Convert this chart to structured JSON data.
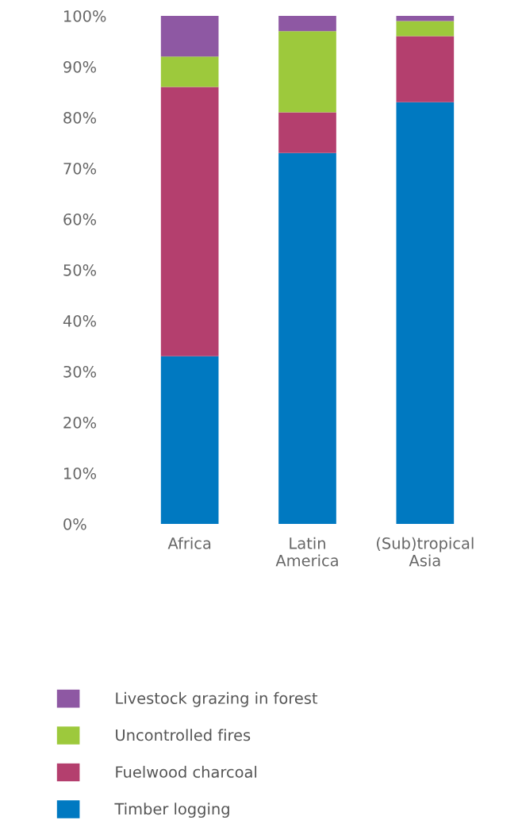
{
  "chart_data": {
    "type": "bar",
    "stacked": true,
    "categories": [
      "Africa",
      "Latin\nAmerica",
      "(Sub)tropical\nAsia"
    ],
    "series": [
      {
        "name": "Timber logging",
        "color": "#0079c1",
        "values": [
          33,
          73,
          83
        ]
      },
      {
        "name": "Fuelwood charcoal",
        "color": "#b43f6e",
        "values": [
          53,
          8,
          13
        ]
      },
      {
        "name": "Uncontrolled fires",
        "color": "#9dc93c",
        "values": [
          6,
          16,
          3
        ]
      },
      {
        "name": "Livestock grazing in forest",
        "color": "#8e58a3",
        "values": [
          8,
          3,
          1
        ]
      }
    ],
    "ylim": [
      0,
      100
    ],
    "yticks": [
      {
        "value": 0,
        "label": "0%"
      },
      {
        "value": 10,
        "label": "10%"
      },
      {
        "value": 20,
        "label": "20%"
      },
      {
        "value": 30,
        "label": "30%"
      },
      {
        "value": 40,
        "label": "40%"
      },
      {
        "value": 50,
        "label": "50%"
      },
      {
        "value": 60,
        "label": "60%"
      },
      {
        "value": 70,
        "label": "70%"
      },
      {
        "value": 80,
        "label": "80%"
      },
      {
        "value": 90,
        "label": "90%"
      },
      {
        "value": 100,
        "label": "100%"
      }
    ],
    "legend": "bottom",
    "grid": false
  }
}
